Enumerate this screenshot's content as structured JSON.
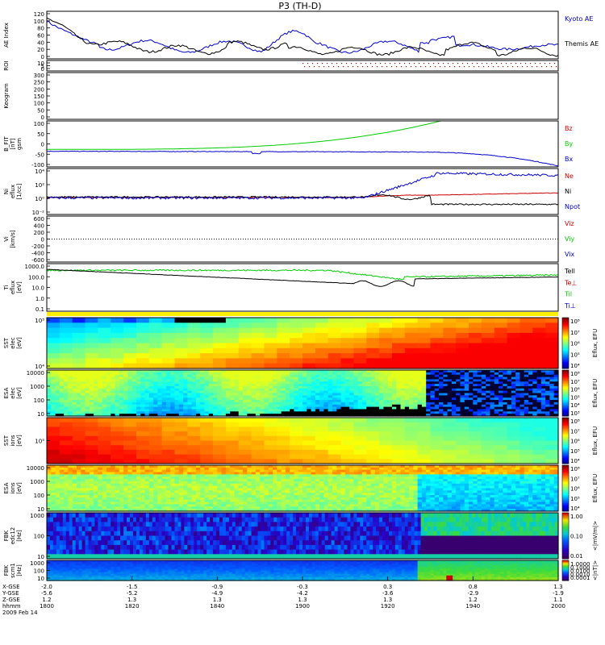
{
  "title": "P3 (TH-D)",
  "colors": {
    "red": "#cc0000",
    "green": "#00cc00",
    "blue": "#0000cc",
    "black": "#000000"
  },
  "panels": [
    {
      "id": "ae",
      "ylabel": [
        "AE Index"
      ],
      "ticks": [
        "120",
        "100",
        "80",
        "60",
        "40",
        "20",
        "0"
      ],
      "legend": [
        {
          "text": "Kyoto AE",
          "color": "blue"
        },
        {
          "text": "Themis AE",
          "color": "black"
        }
      ]
    },
    {
      "id": "roi",
      "ylabel": [
        "ROI"
      ],
      "ticks": [
        "10",
        "5",
        "0"
      ],
      "legend": []
    },
    {
      "id": "keogram",
      "ylabel": [
        "Keogram"
      ],
      "ticks": [
        "300",
        "250",
        "200",
        "150",
        "100",
        "50",
        "0"
      ],
      "legend": []
    },
    {
      "id": "bfgm",
      "ylabel": [
        "B_FIT",
        "[nT]",
        "gsm"
      ],
      "ticks": [
        "100",
        "50",
        "0",
        "-50",
        "-100"
      ],
      "legend": [
        {
          "text": "Bz",
          "color": "red"
        },
        {
          "text": "By",
          "color": "green"
        },
        {
          "text": "Bx",
          "color": "blue"
        }
      ]
    },
    {
      "id": "ni",
      "ylabel": [
        "Ni",
        "eflux",
        "[1/cc]"
      ],
      "ticks": [
        "10⁴",
        "10²",
        "10⁰",
        "10⁻²"
      ],
      "legend": [
        {
          "text": "Ne",
          "color": "red"
        },
        {
          "text": "Ni",
          "color": "black"
        },
        {
          "text": "Npot",
          "color": "blue"
        }
      ]
    },
    {
      "id": "vi",
      "ylabel": [
        "Vi",
        "[km/s]"
      ],
      "ticks": [
        "600",
        "400",
        "200",
        "0",
        "-200",
        "-400",
        "-600"
      ],
      "legend": [
        {
          "text": "Viz",
          "color": "red"
        },
        {
          "text": "Viy",
          "color": "green"
        },
        {
          "text": "Vix",
          "color": "blue"
        }
      ]
    },
    {
      "id": "ti",
      "ylabel": [
        "Ti",
        "eflux",
        "[eV]"
      ],
      "ticks": [
        "1000.0",
        "100.0",
        "10.0",
        "1.0",
        "0.1"
      ],
      "legend": [
        {
          "text": "Tell",
          "color": "black"
        },
        {
          "text": "Te⊥",
          "color": "red"
        },
        {
          "text": "Til",
          "color": "green"
        },
        {
          "text": "Ti⊥",
          "color": "blue"
        }
      ]
    },
    {
      "id": "sste",
      "ylabel": [
        "SST",
        "elec",
        "[eV]"
      ],
      "ticks": [
        "10⁵",
        "10⁴"
      ],
      "cbar": [
        "10⁸",
        "10⁷",
        "10⁶",
        "10⁵",
        "10⁴"
      ],
      "clabel": "Eflux, EFU",
      "cbar_type": "rainbow"
    },
    {
      "id": "esae",
      "ylabel": [
        "ESA",
        "elec",
        "[eV]"
      ],
      "ticks": [
        "10000",
        "1000",
        "100",
        "10"
      ],
      "cbar": [
        "10⁸",
        "10⁷",
        "10⁶",
        "10⁵",
        "10⁴",
        "10³"
      ],
      "clabel": "Eflux, EFU",
      "cbar_type": "rainbow"
    },
    {
      "id": "ssti",
      "ylabel": [
        "SST",
        "ions",
        "[eV]"
      ],
      "ticks": [
        "10⁵"
      ],
      "cbar": [
        "10⁸",
        "10⁷",
        "10⁶",
        "10⁵",
        "10⁴"
      ],
      "clabel": "Eflux, EFU",
      "cbar_type": "rainbow"
    },
    {
      "id": "esai",
      "ylabel": [
        "ESA",
        "ions",
        "[eV]"
      ],
      "ticks": [
        "10000",
        "1000",
        "100",
        "10"
      ],
      "cbar": [
        "10⁸",
        "10⁷",
        "10⁶",
        "10⁵",
        "10⁴"
      ],
      "clabel": "Eflux, EFU",
      "cbar_type": "rainbow"
    },
    {
      "id": "fbke",
      "ylabel": [
        "FBK",
        "edc12",
        "[Hz]"
      ],
      "ticks": [
        "1000",
        "100",
        "10"
      ],
      "cbar": [
        "1.00",
        "0.10",
        "0.01"
      ],
      "clabel": "<|mV/m|>",
      "cbar_type": "fbk"
    },
    {
      "id": "fbkb",
      "ylabel": [
        "FBK",
        "scm1",
        "[Hz]"
      ],
      "ticks": [
        "1000",
        "100",
        "10"
      ],
      "cbar": [
        "1.0000",
        "0.1000",
        "0.0100",
        "0.0010",
        "0.0001"
      ],
      "clabel": "<|nT|>",
      "cbar_type": "fbk"
    }
  ],
  "xaxis": {
    "row_labels": [
      "X-GSE",
      "Y-GSE",
      "Z-GSE",
      "hhmm",
      "2009 Feb 14"
    ],
    "columns": [
      {
        "x": "-2.0",
        "y": "-5.6",
        "z": "1.2",
        "t": "1800"
      },
      {
        "x": "-1.5",
        "y": "-5.2",
        "z": "1.3",
        "t": "1820"
      },
      {
        "x": "-0.9",
        "y": "-4.9",
        "z": "1.3",
        "t": "1840"
      },
      {
        "x": "-0.3",
        "y": "-4.2",
        "z": "1.3",
        "t": "1900"
      },
      {
        "x": "0.3",
        "y": "-3.6",
        "z": "1.3",
        "t": "1920"
      },
      {
        "x": "0.8",
        "y": "-2.9",
        "z": "1.2",
        "t": "1940"
      },
      {
        "x": "1.3",
        "y": "-1.9",
        "z": "1.1",
        "t": "2000"
      }
    ]
  }
}
